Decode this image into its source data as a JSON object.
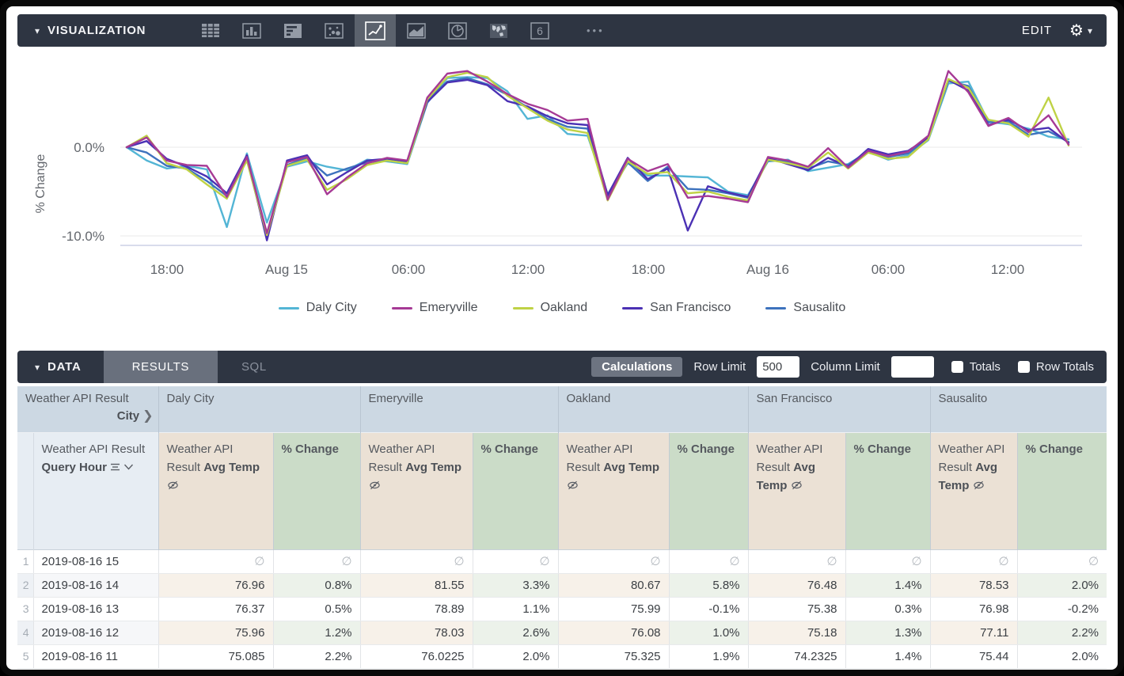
{
  "viz_panel": {
    "title": "VISUALIZATION",
    "edit_label": "EDIT",
    "icons": [
      {
        "name": "table-chart-icon",
        "selected": false
      },
      {
        "name": "column-chart-icon",
        "selected": false
      },
      {
        "name": "bar-chart-icon",
        "selected": false
      },
      {
        "name": "scatter-chart-icon",
        "selected": false
      },
      {
        "name": "line-chart-icon",
        "selected": true
      },
      {
        "name": "area-chart-icon",
        "selected": false
      },
      {
        "name": "pie-chart-icon",
        "selected": false
      },
      {
        "name": "map-chart-icon",
        "selected": false
      },
      {
        "name": "single-value-icon",
        "selected": false,
        "glyph": "6"
      },
      {
        "name": "more-options-icon",
        "selected": false,
        "glyph": "•••"
      }
    ]
  },
  "chart_data": {
    "type": "line",
    "ylabel": "% Change",
    "y_ticks": [
      {
        "label": "0.0%",
        "value": 0
      },
      {
        "label": "-10.0%",
        "value": -10
      }
    ],
    "x_tick_labels": [
      "18:00",
      "Aug 15",
      "06:00",
      "12:00",
      "18:00",
      "Aug 16",
      "06:00",
      "12:00"
    ],
    "x_range_hours": 48,
    "ylim": [
      -11.1,
      11.1
    ],
    "grid": true,
    "legend_position": "bottom",
    "series": [
      {
        "name": "Daly City",
        "color": "#53b5d5",
        "values": [
          0.0,
          -1.5,
          -2.4,
          -2.1,
          -2.5,
          -9.0,
          -0.7,
          -8.5,
          -2.2,
          -1.6,
          -2.2,
          -2.6,
          -1.4,
          -1.6,
          -1.9,
          5.0,
          7.8,
          7.9,
          7.8,
          6.3,
          3.2,
          3.6,
          1.5,
          1.3,
          -5.3,
          -1.8,
          -3.2,
          -3.2,
          -3.3,
          -3.4,
          -5.0,
          -5.4,
          -1.6,
          -1.4,
          -2.7,
          -2.3,
          -1.9,
          -0.5,
          -1.4,
          -0.9,
          0.8,
          7.2,
          7.4,
          2.9,
          2.6,
          2.1,
          1.2,
          0.9
        ]
      },
      {
        "name": "Emeryville",
        "color": "#a63a95",
        "values": [
          0.0,
          1.1,
          -1.5,
          -2.0,
          -2.1,
          -5.6,
          -1.1,
          -9.7,
          -1.7,
          -1.1,
          -5.3,
          -3.4,
          -1.8,
          -1.2,
          -1.5,
          5.6,
          8.3,
          8.6,
          7.4,
          6.0,
          4.9,
          4.2,
          3.0,
          3.2,
          -5.9,
          -1.3,
          -2.7,
          -1.9,
          -5.7,
          -5.5,
          -5.8,
          -6.2,
          -1.1,
          -1.5,
          -2.2,
          -0.1,
          -2.3,
          -0.4,
          -1.0,
          -0.5,
          1.3,
          8.6,
          6.2,
          2.4,
          3.3,
          1.7,
          3.6,
          0.3
        ]
      },
      {
        "name": "Oakland",
        "color": "#bfd245",
        "values": [
          0.0,
          1.3,
          -1.8,
          -2.5,
          -4.2,
          -5.8,
          -1.5,
          -9.9,
          -2.1,
          -1.4,
          -4.8,
          -3.6,
          -2.0,
          -1.5,
          -1.8,
          5.4,
          7.9,
          8.4,
          7.9,
          5.8,
          4.4,
          3.0,
          2.0,
          1.6,
          -6.0,
          -1.6,
          -3.0,
          -2.8,
          -5.2,
          -5.0,
          -5.6,
          -6.0,
          -1.4,
          -1.8,
          -2.3,
          -0.6,
          -2.4,
          -0.6,
          -1.3,
          -1.1,
          0.9,
          7.7,
          6.7,
          3.1,
          2.7,
          1.2,
          5.6,
          0.2
        ]
      },
      {
        "name": "San Francisco",
        "color": "#4b31b4",
        "values": [
          0.0,
          0.7,
          -1.3,
          -2.2,
          -3.3,
          -5.2,
          -0.9,
          -10.5,
          -1.5,
          -0.9,
          -4.2,
          -2.8,
          -1.5,
          -1.3,
          -1.6,
          5.1,
          7.3,
          7.6,
          7.0,
          5.2,
          4.6,
          3.5,
          2.7,
          2.5,
          -5.4,
          -1.2,
          -3.6,
          -2.4,
          -9.4,
          -4.4,
          -5.1,
          -5.6,
          -1.2,
          -1.9,
          -2.6,
          -1.2,
          -2.2,
          -0.2,
          -0.8,
          -0.4,
          1.1,
          7.6,
          6.4,
          2.5,
          3.1,
          1.9,
          2.2,
          0.5
        ]
      },
      {
        "name": "Sausalito",
        "color": "#3d72bd",
        "values": [
          0.0,
          -0.6,
          -2.1,
          -2.4,
          -3.8,
          -5.5,
          -1.4,
          -10.1,
          -2.0,
          -1.2,
          -3.2,
          -2.4,
          -1.7,
          -1.5,
          -1.8,
          5.3,
          7.4,
          7.8,
          7.1,
          5.9,
          4.5,
          3.2,
          2.3,
          2.1,
          -5.7,
          -1.7,
          -3.8,
          -2.2,
          -4.7,
          -4.8,
          -5.2,
          -5.7,
          -1.5,
          -1.6,
          -2.4,
          -1.6,
          -2.0,
          -0.4,
          -1.1,
          -0.7,
          1.0,
          7.5,
          6.9,
          2.8,
          2.9,
          1.4,
          1.8,
          0.6
        ]
      }
    ]
  },
  "data_panel": {
    "title": "DATA",
    "results_tab": "RESULTS",
    "sql_tab": "SQL",
    "calculations_label": "Calculations",
    "row_limit_label": "Row Limit",
    "row_limit_value": "500",
    "column_limit_label": "Column Limit",
    "column_limit_value": "",
    "totals_label": "Totals",
    "row_totals_label": "Row Totals"
  },
  "table": {
    "pivot_field_prefix": "Weather API Result",
    "pivot_field_name": "City",
    "row_field_prefix": "Weather API Result",
    "row_field_name": "Query Hour",
    "measure_prefix": "Weather API Result",
    "measure_name": "Avg Temp",
    "calc_name": "% Change",
    "cities": [
      "Daly City",
      "Emeryville",
      "Oakland",
      "San Francisco",
      "Sausalito"
    ],
    "null_symbol": "∅",
    "rows": [
      {
        "num": "1",
        "hour": "2019-08-16 15",
        "cells": [
          "∅",
          "∅",
          "∅",
          "∅",
          "∅",
          "∅",
          "∅",
          "∅",
          "∅",
          "∅"
        ]
      },
      {
        "num": "2",
        "hour": "2019-08-16 14",
        "cells": [
          "76.96",
          "0.8%",
          "81.55",
          "3.3%",
          "80.67",
          "5.8%",
          "76.48",
          "1.4%",
          "78.53",
          "2.0%"
        ]
      },
      {
        "num": "3",
        "hour": "2019-08-16 13",
        "cells": [
          "76.37",
          "0.5%",
          "78.89",
          "1.1%",
          "75.99",
          "-0.1%",
          "75.38",
          "0.3%",
          "76.98",
          "-0.2%"
        ]
      },
      {
        "num": "4",
        "hour": "2019-08-16 12",
        "cells": [
          "75.96",
          "1.2%",
          "78.03",
          "2.6%",
          "76.08",
          "1.0%",
          "75.18",
          "1.3%",
          "77.11",
          "2.2%"
        ]
      },
      {
        "num": "5",
        "hour": "2019-08-16 11",
        "cells": [
          "75.085",
          "2.2%",
          "76.0225",
          "2.0%",
          "75.325",
          "1.9%",
          "74.2325",
          "1.4%",
          "75.44",
          "2.0%"
        ]
      }
    ]
  },
  "colors": {
    "panel_bar_bg": "#2e3542",
    "selected_tab_bg": "#69707d",
    "group_header_bg": "#ccd8e3",
    "dimension_header_bg": "#e7edf3",
    "measure_header_bg": "#ebe1d5",
    "calc_header_bg": "#cbdcc8"
  }
}
